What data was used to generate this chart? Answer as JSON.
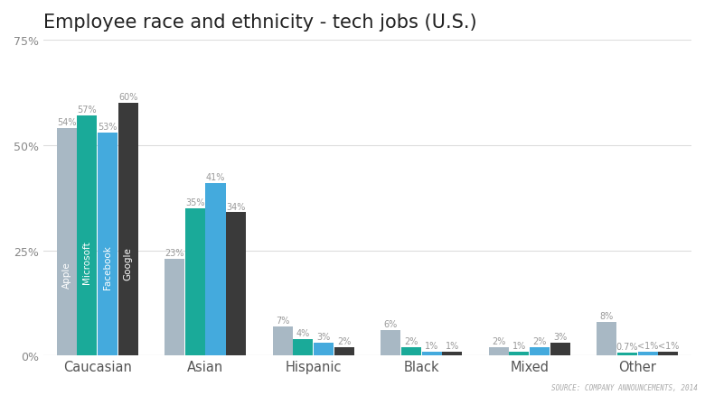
{
  "title": "Employee race and ethnicity - tech jobs (U.S.)",
  "categories": [
    "Caucasian",
    "Asian",
    "Hispanic",
    "Black",
    "Mixed",
    "Other"
  ],
  "companies": [
    "Apple",
    "Microsoft",
    "Facebook",
    "Google"
  ],
  "colors": [
    "#a8b8c4",
    "#1aaa99",
    "#44aadd",
    "#3a3a3a"
  ],
  "values": {
    "Caucasian": [
      54,
      57,
      53,
      60
    ],
    "Asian": [
      23,
      35,
      41,
      34
    ],
    "Hispanic": [
      7,
      4,
      3,
      2
    ],
    "Black": [
      6,
      2,
      1,
      1
    ],
    "Mixed": [
      2,
      1,
      2,
      3
    ],
    "Other": [
      8,
      0.7,
      1,
      1
    ]
  },
  "labels": {
    "Caucasian": [
      "54%",
      "57%",
      "53%",
      "60%"
    ],
    "Asian": [
      "23%",
      "35%",
      "41%",
      "34%"
    ],
    "Hispanic": [
      "7%",
      "4%",
      "3%",
      "2%"
    ],
    "Black": [
      "6%",
      "2%",
      "1%",
      "1%"
    ],
    "Mixed": [
      "2%",
      "1%",
      "2%",
      "3%"
    ],
    "Other": [
      "8%",
      "0.7%",
      "<1%",
      "<1%"
    ]
  },
  "ylim": [
    0,
    75
  ],
  "yticks": [
    0,
    25,
    50,
    75
  ],
  "ytick_labels": [
    "0%",
    "25%",
    "50%",
    "75%"
  ],
  "source_text": "SOURCE: COMPANY ANNOUNCEMENTS, 2014",
  "background_color": "#ffffff",
  "bar_width": 0.19,
  "label_fontsize": 7.0,
  "title_fontsize": 15,
  "axis_label_color": "#888888",
  "tick_label_color": "#555555",
  "grid_color": "#dddddd",
  "label_color": "#999999"
}
